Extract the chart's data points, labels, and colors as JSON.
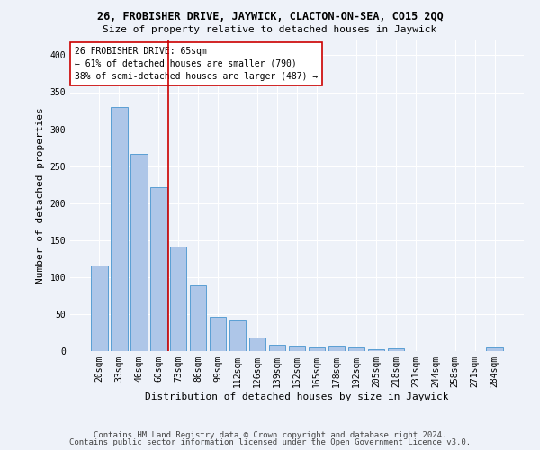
{
  "title1": "26, FROBISHER DRIVE, JAYWICK, CLACTON-ON-SEA, CO15 2QQ",
  "title2": "Size of property relative to detached houses in Jaywick",
  "xlabel": "Distribution of detached houses by size in Jaywick",
  "ylabel": "Number of detached properties",
  "categories": [
    "20sqm",
    "33sqm",
    "46sqm",
    "60sqm",
    "73sqm",
    "86sqm",
    "99sqm",
    "112sqm",
    "126sqm",
    "139sqm",
    "152sqm",
    "165sqm",
    "178sqm",
    "192sqm",
    "205sqm",
    "218sqm",
    "231sqm",
    "244sqm",
    "258sqm",
    "271sqm",
    "284sqm"
  ],
  "values": [
    116,
    330,
    267,
    222,
    141,
    89,
    46,
    41,
    18,
    9,
    7,
    5,
    7,
    5,
    3,
    4,
    0,
    0,
    0,
    0,
    5
  ],
  "bar_color": "#aec6e8",
  "bar_edge_color": "#5a9fd4",
  "vline_x": 3.5,
  "vline_color": "#cc0000",
  "annotation_text": "26 FROBISHER DRIVE: 65sqm\n← 61% of detached houses are smaller (790)\n38% of semi-detached houses are larger (487) →",
  "annotation_box_color": "#ffffff",
  "annotation_box_edge": "#cc0000",
  "ylim": [
    0,
    420
  ],
  "yticks": [
    0,
    50,
    100,
    150,
    200,
    250,
    300,
    350,
    400
  ],
  "footer1": "Contains HM Land Registry data © Crown copyright and database right 2024.",
  "footer2": "Contains public sector information licensed under the Open Government Licence v3.0.",
  "background_color": "#eef2f9",
  "grid_color": "#ffffff",
  "title1_fontsize": 8.5,
  "title2_fontsize": 8,
  "axis_label_fontsize": 8,
  "tick_fontsize": 7,
  "annotation_fontsize": 7,
  "footer_fontsize": 6.5
}
